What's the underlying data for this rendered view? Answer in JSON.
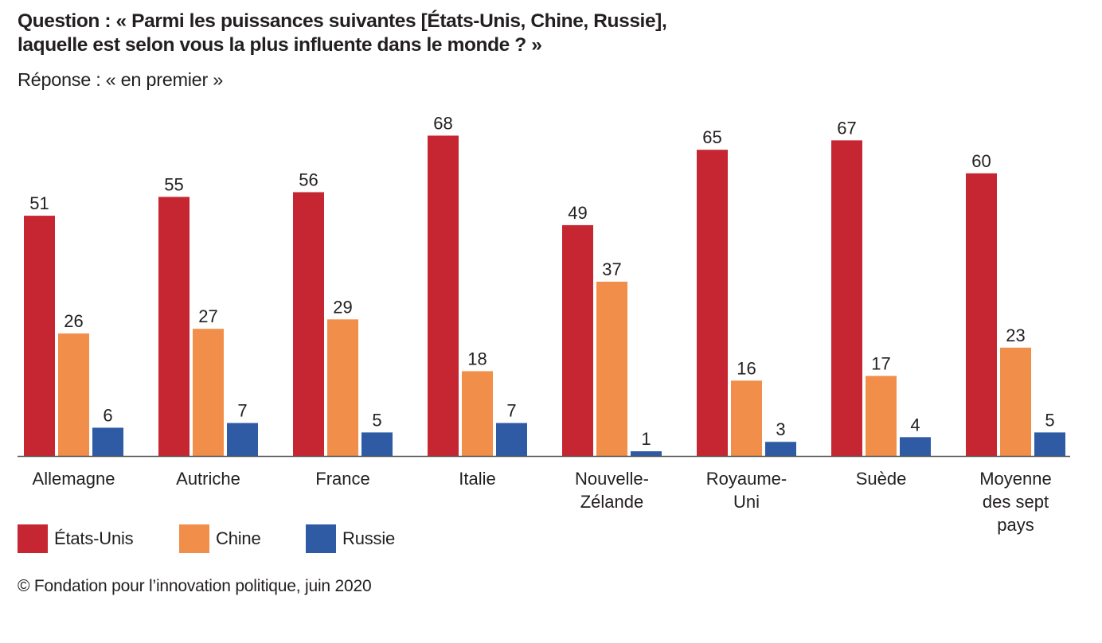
{
  "header": {
    "title_line1": "Question : « Parmi les puissances suivantes [États-Unis, Chine, Russie],",
    "title_line2": "laquelle est selon vous la plus influente dans le monde ? »",
    "subtitle": "Réponse : « en premier »"
  },
  "footer": {
    "source": "© Fondation pour l’innovation politique, juin 2020"
  },
  "chart_data": {
    "type": "bar",
    "title": "Question : « Parmi les puissances suivantes [États-Unis, Chine, Russie], laquelle est selon vous la plus influente dans le monde ? »",
    "subtitle": "Réponse : « en premier »",
    "xlabel": "",
    "ylabel": "",
    "ylim": [
      0,
      70
    ],
    "grid": false,
    "legend_position": "bottom-left",
    "categories": [
      [
        "Allemagne"
      ],
      [
        "Autriche"
      ],
      [
        "France"
      ],
      [
        "Italie"
      ],
      [
        "Nouvelle-",
        "Zélande"
      ],
      [
        "Royaume-",
        "Uni"
      ],
      [
        "Suède"
      ],
      [
        "Moyenne",
        "des sept",
        "pays"
      ]
    ],
    "series": [
      {
        "name": "États-Unis",
        "color": "#C62631",
        "values": [
          51,
          55,
          56,
          68,
          49,
          65,
          67,
          60
        ]
      },
      {
        "name": "Chine",
        "color": "#F18F4A",
        "values": [
          26,
          27,
          29,
          18,
          37,
          16,
          17,
          23
        ]
      },
      {
        "name": "Russie",
        "color": "#2F5BA5",
        "values": [
          6,
          7,
          5,
          7,
          1,
          3,
          4,
          5
        ]
      }
    ],
    "axis_color": "#555555",
    "text_color": "#231F20"
  }
}
